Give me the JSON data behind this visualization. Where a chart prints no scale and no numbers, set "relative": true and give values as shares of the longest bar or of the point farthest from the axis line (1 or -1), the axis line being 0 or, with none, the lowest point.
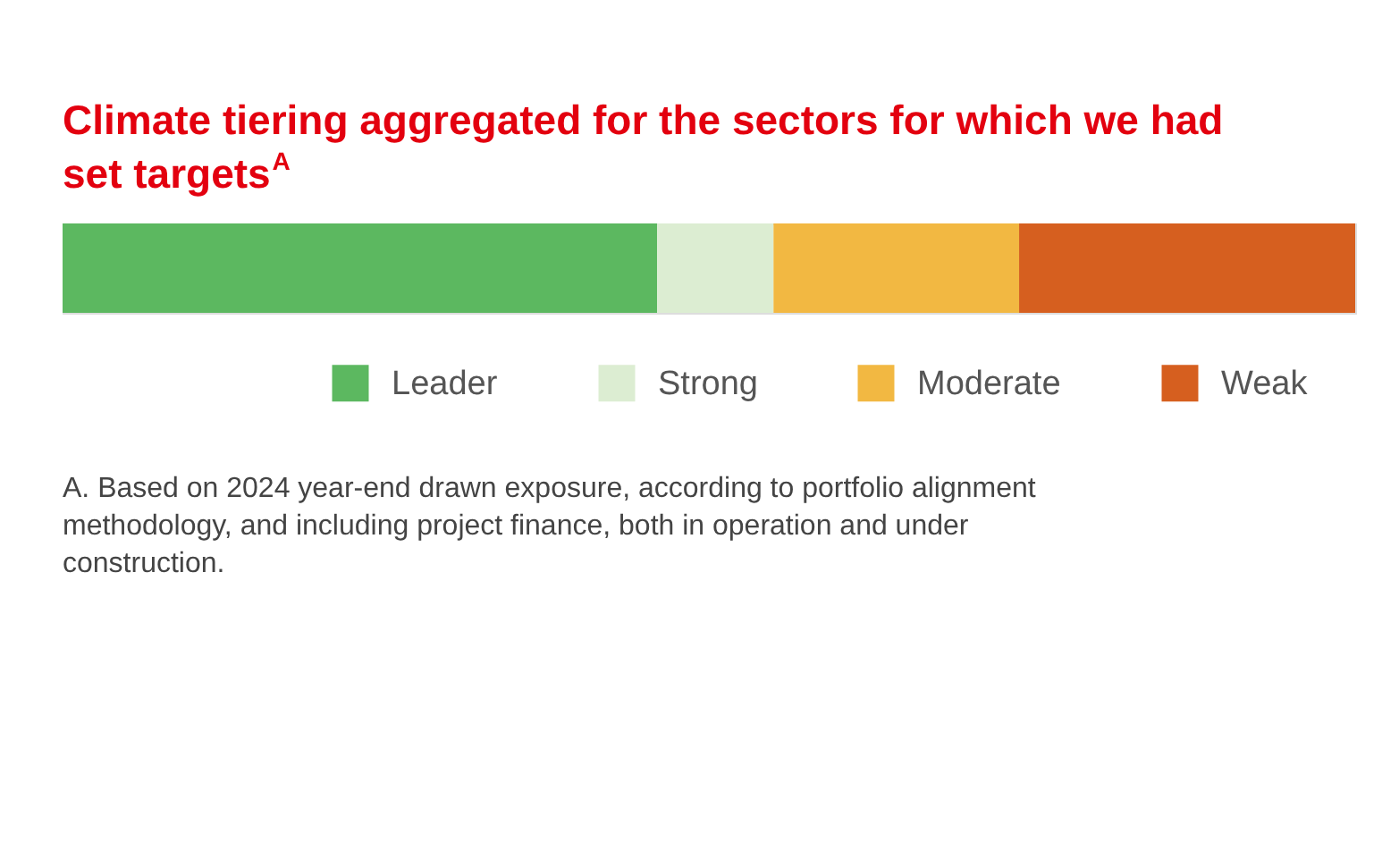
{
  "chart_data": {
    "type": "bar",
    "orientation": "horizontal",
    "stacked": true,
    "relative": true,
    "title": "Climate tiering aggregated for the sectors for which we had set targets$^{A}$",
    "categories": [
      null
    ],
    "series": [
      {
        "name": "Leader",
        "color": "#5cb860",
        "values": [
          0.46
        ]
      },
      {
        "name": "Strong",
        "color": "#dcedd2",
        "values": [
          0.09
        ]
      },
      {
        "name": "Moderate",
        "color": "#f2b842",
        "values": [
          0.19
        ]
      },
      {
        "name": "Weak",
        "color": "#d65f1f",
        "values": [
          0.26
        ]
      }
    ],
    "legend": "bottom right",
    "annotations": [
      "A.   Based on 2024 year-end drawn exposure, according to portfolio alignment methodology, and including project finance, both in operation and under construction."
    ]
  }
}
